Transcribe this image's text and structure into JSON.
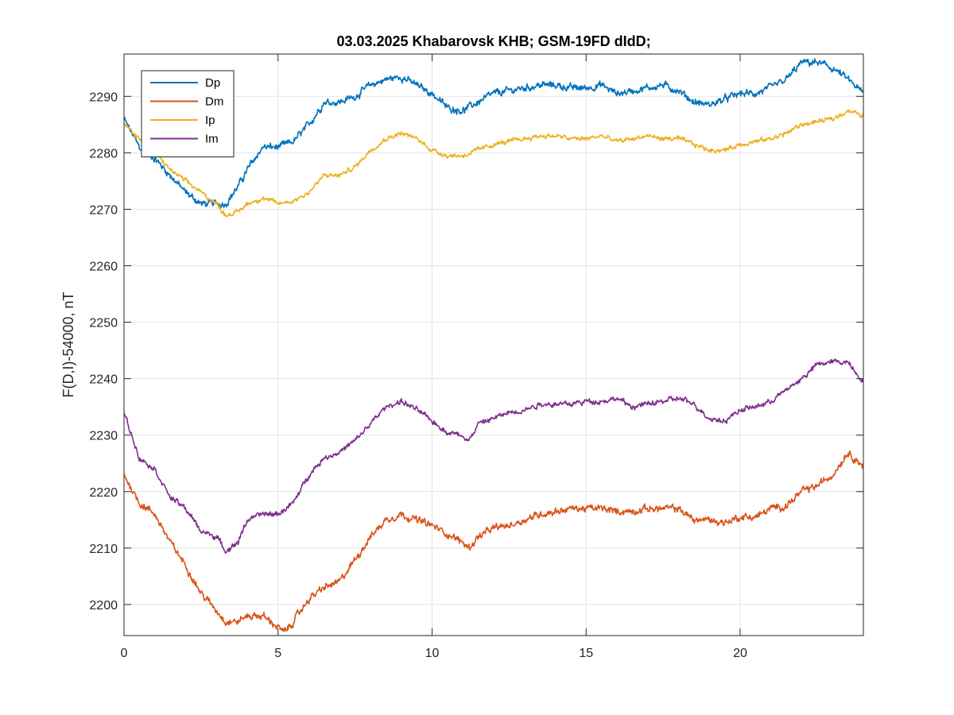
{
  "chart_data": {
    "type": "line",
    "title": "03.03.2025  Khabarovsk KHB; GSM-19FD dIdD;",
    "xlabel": "",
    "ylabel": "F(D,I)-54000, nT",
    "xlim": [
      0,
      24
    ],
    "ylim": [
      2194.5,
      2297.5
    ],
    "xticks": [
      0,
      5,
      10,
      15,
      20
    ],
    "yticks": [
      2200,
      2210,
      2220,
      2230,
      2240,
      2250,
      2260,
      2270,
      2280,
      2290
    ],
    "grid": true,
    "legend_position": "top-left",
    "series": [
      {
        "name": "Dp",
        "color": "#0072BD",
        "noise": 0.6,
        "x": [
          0,
          0.5,
          1,
          1.5,
          2,
          2.5,
          3,
          3.3,
          3.7,
          4,
          4.5,
          5,
          5.5,
          6,
          6.5,
          7,
          7.5,
          8,
          8.5,
          9,
          9.5,
          10,
          10.5,
          11,
          11.5,
          12,
          12.5,
          13,
          13.5,
          14,
          14.5,
          15,
          15.5,
          16,
          16.5,
          17,
          17.5,
          18,
          18.5,
          19,
          19.5,
          20,
          20.5,
          21,
          21.5,
          22,
          22.5,
          23,
          23.5,
          24
        ],
        "y": [
          2286,
          2281,
          2279,
          2276,
          2273,
          2271,
          2271,
          2271,
          2274,
          2277,
          2281,
          2281,
          2282,
          2285,
          2289,
          2289,
          2290,
          2292,
          2293,
          2293.5,
          2292,
          2290.5,
          2288,
          2287.5,
          2289,
          2290.5,
          2291,
          2291.5,
          2292,
          2292,
          2291.5,
          2291.5,
          2292,
          2290.5,
          2291,
          2291.5,
          2292,
          2291,
          2289,
          2288.5,
          2289.5,
          2290.5,
          2290.5,
          2291.5,
          2293,
          2296,
          2296,
          2295,
          2293,
          2290.5
        ]
      },
      {
        "name": "Dm",
        "color": "#D95319",
        "noise": 0.6,
        "x": [
          0,
          0.5,
          1,
          1.5,
          2,
          2.5,
          3,
          3.3,
          3.7,
          4,
          4.5,
          5,
          5.2,
          5.5,
          6,
          6.5,
          7,
          7.5,
          8,
          8.5,
          9,
          9.5,
          10,
          10.5,
          11,
          11.2,
          11.5,
          12,
          12.5,
          13,
          13.5,
          14,
          14.5,
          15,
          15.5,
          16,
          16.5,
          17,
          17.5,
          18,
          18.5,
          19,
          19.5,
          20,
          20.5,
          21,
          21.5,
          22,
          22.5,
          23,
          23.5,
          24
        ],
        "y": [
          2223,
          2218,
          2216,
          2211,
          2207,
          2202,
          2199,
          2197,
          2197,
          2198,
          2198,
          2196,
          2195,
          2197,
          2201,
          2203,
          2204,
          2208,
          2212,
          2215,
          2216,
          2215,
          2214,
          2212.5,
          2211,
          2210,
          2212,
          2213.5,
          2214,
          2215,
          2216,
          2216.5,
          2217,
          2217,
          2217,
          2216.5,
          2216.5,
          2217,
          2217,
          2217,
          2215,
          2215,
          2214.5,
          2215.5,
          2215.5,
          2217,
          2217.5,
          2220,
          2221,
          2223,
          2227,
          2224.5
        ]
      },
      {
        "name": "Ip",
        "color": "#EDB120",
        "noise": 0.4,
        "x": [
          0,
          0.5,
          1,
          1.5,
          2,
          2.5,
          3,
          3.3,
          3.7,
          4,
          4.5,
          5,
          5.5,
          6,
          6.5,
          7,
          7.5,
          8,
          8.5,
          9,
          9.5,
          10,
          10.5,
          11,
          11.5,
          12,
          12.5,
          13,
          13.5,
          14,
          14.5,
          15,
          15.5,
          16,
          16.5,
          17,
          17.5,
          18,
          18.5,
          19,
          19.5,
          20,
          20.5,
          21,
          21.5,
          22,
          22.5,
          23,
          23.5,
          24
        ],
        "y": [
          2285,
          2282.5,
          2280,
          2277,
          2275,
          2273,
          2271,
          2269,
          2269.5,
          2271,
          2272,
          2271,
          2271.5,
          2273,
          2276,
          2276,
          2277.5,
          2280.5,
          2282.5,
          2283.5,
          2282.5,
          2280.5,
          2279.5,
          2279.5,
          2280.5,
          2281.5,
          2282,
          2282.5,
          2283,
          2283,
          2282.5,
          2282.5,
          2283,
          2282,
          2282.5,
          2283,
          2282.5,
          2282.5,
          2281.5,
          2280.5,
          2280.5,
          2281.5,
          2282,
          2282.5,
          2283.5,
          2285,
          2285.5,
          2286,
          2287.5,
          2286.5
        ]
      },
      {
        "name": "Im",
        "color": "#7E2F8E",
        "noise": 0.45,
        "x": [
          0,
          0.5,
          1,
          1.5,
          2,
          2.5,
          3,
          3.3,
          3.7,
          4,
          4.5,
          5,
          5.5,
          6,
          6.5,
          7,
          7.5,
          8,
          8.5,
          9,
          9.5,
          10,
          10.5,
          11,
          11.2,
          11.5,
          12,
          12.5,
          13,
          13.5,
          14,
          14.5,
          15,
          15.5,
          16,
          16.5,
          17,
          17.5,
          18,
          18.5,
          19,
          19.5,
          20,
          20.5,
          21,
          21.5,
          22,
          22.5,
          23,
          23.5,
          24
        ],
        "y": [
          2234,
          2226,
          2224,
          2219,
          2217,
          2213,
          2212,
          2209.5,
          2211,
          2215,
          2216,
          2216,
          2218,
          2223,
          2226,
          2227,
          2229,
          2232,
          2235,
          2236,
          2234.5,
          2232.5,
          2230.5,
          2230,
          2229,
          2232,
          2233,
          2234,
          2234.5,
          2235.5,
          2235.5,
          2235.5,
          2236,
          2236,
          2236.5,
          2235,
          2235.5,
          2236,
          2236.5,
          2235.5,
          2233,
          2232.5,
          2234.5,
          2235,
          2236,
          2238,
          2240,
          2242.5,
          2243,
          2243,
          2239.5
        ]
      }
    ]
  }
}
